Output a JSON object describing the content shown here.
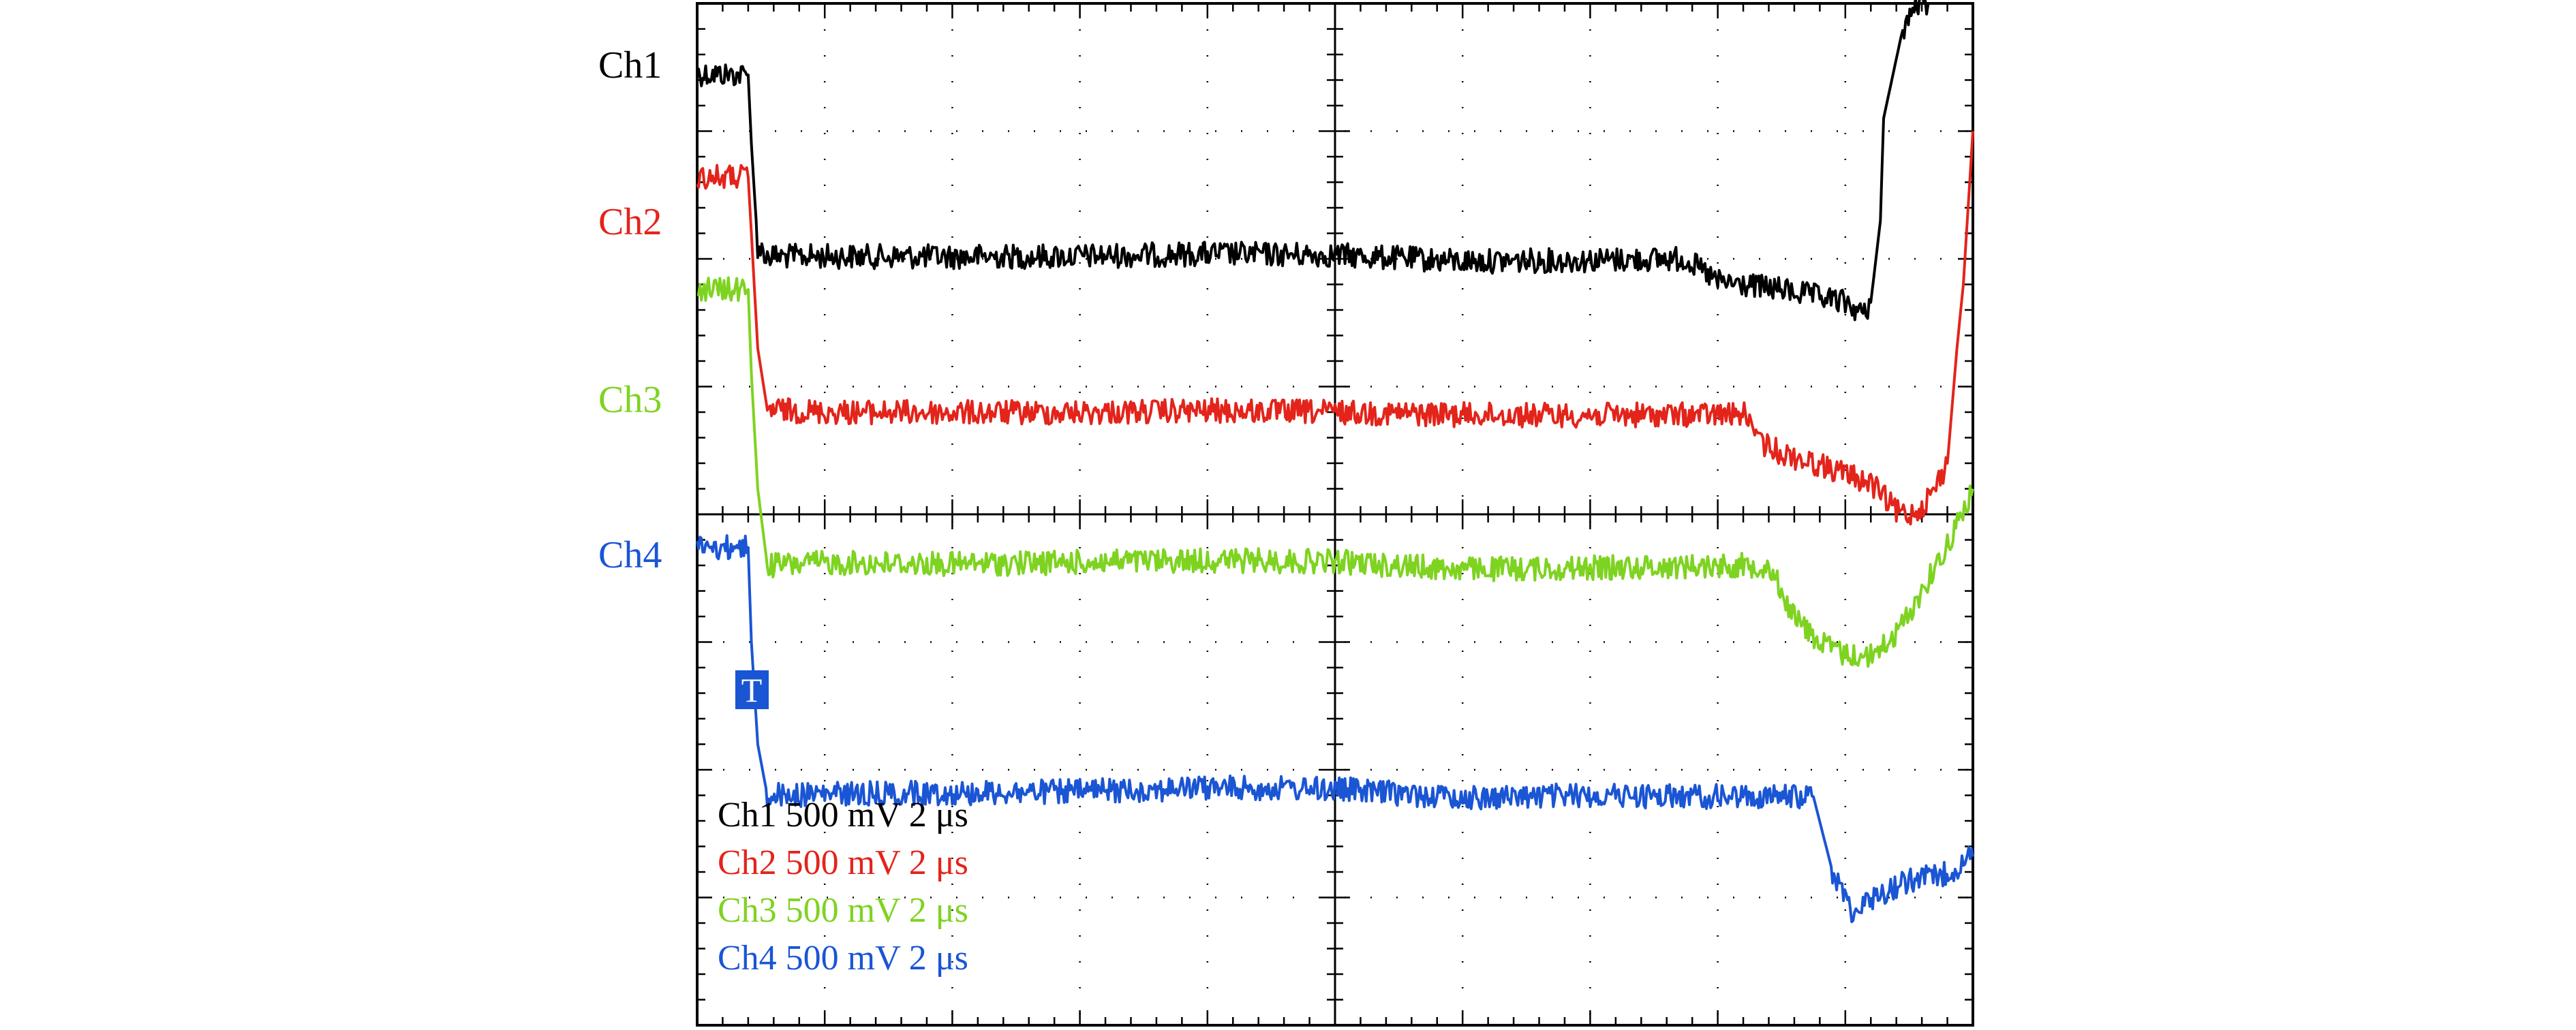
{
  "chart_data": {
    "type": "line",
    "title": "",
    "xlabel": "",
    "ylabel": "",
    "grid": true,
    "x_divisions": 10,
    "y_divisions": 8,
    "trigger_marker": "T",
    "x_unit": "µs",
    "xlim": [
      0,
      20
    ],
    "ylim": [
      -2000,
      2000
    ],
    "y_unit": "mV",
    "series": [
      {
        "name": "Ch1",
        "label": "Ch1",
        "legend": "Ch1 500 mV 2 μs",
        "color": "#000000",
        "x": [
          0,
          0.8,
          0.85,
          0.95,
          1.1,
          2,
          4,
          6,
          8,
          10,
          12,
          14,
          15.5,
          15.8,
          16,
          17,
          18,
          18.3,
          18.4,
          18.55,
          18.6,
          18.9,
          19.1,
          19.25,
          19.3
        ],
        "y": [
          1725,
          1720,
          1450,
          1050,
          1010,
          1010,
          1008,
          1010,
          1020,
          1015,
          990,
          995,
          1000,
          945,
          910,
          880,
          830,
          780,
          830,
          1150,
          1550,
          1900,
          1990,
          2000,
          2000
        ]
      },
      {
        "name": "Ch2",
        "label": "Ch2",
        "legend": "Ch2 500 mV 2 μs",
        "color": "#e3241b",
        "x": [
          0,
          0.8,
          0.85,
          0.95,
          1.1,
          2,
          4,
          6,
          8,
          10,
          12,
          14,
          16,
          16.5,
          16.6,
          17,
          17.5,
          18,
          18.4,
          18.6,
          18.8,
          19.0,
          19.2,
          19.4,
          19.6,
          19.75,
          19.85,
          19.9,
          20
        ],
        "y": [
          1320,
          1320,
          1100,
          650,
          410,
          400,
          398,
          398,
          405,
          400,
          390,
          388,
          390,
          390,
          290,
          240,
          200,
          160,
          120,
          70,
          10,
          0,
          30,
          100,
          200,
          650,
          900,
          1100,
          1500
        ]
      },
      {
        "name": "Ch3",
        "label": "Ch3",
        "legend": "Ch3 500 mV 2 μs",
        "color": "#7ed321",
        "x": [
          0,
          0.8,
          0.85,
          0.95,
          1.1,
          2,
          4,
          6,
          8,
          10,
          12,
          14,
          16,
          16.8,
          17.2,
          17.6,
          18,
          18.4,
          18.8,
          19.2,
          19.6,
          20
        ],
        "y": [
          880,
          880,
          550,
          100,
          -200,
          -190,
          -195,
          -188,
          -180,
          -185,
          -215,
          -210,
          -200,
          -200,
          -400,
          -500,
          -550,
          -555,
          -470,
          -300,
          -120,
          100
        ]
      },
      {
        "name": "Ch4",
        "label": "Ch4",
        "legend": "Ch4 500 mV 2 μs",
        "color": "#1a55d4",
        "x": [
          0,
          0.8,
          0.85,
          0.95,
          1.1,
          2,
          4,
          6,
          8,
          10,
          12,
          14,
          16,
          17.5,
          17.8,
          18.1,
          18.3,
          18.6,
          19,
          19.4,
          19.7,
          20
        ],
        "y": [
          -130,
          -130,
          -500,
          -900,
          -1100,
          -1095,
          -1090,
          -1085,
          -1070,
          -1075,
          -1110,
          -1100,
          -1105,
          -1105,
          -1400,
          -1550,
          -1520,
          -1480,
          -1430,
          -1420,
          -1390,
          -1340
        ]
      }
    ]
  },
  "trace_colors": {
    "ch1": "#000000",
    "ch2": "#e3241b",
    "ch3": "#7ed321",
    "ch4": "#1a55d4",
    "grid": "#000000"
  }
}
